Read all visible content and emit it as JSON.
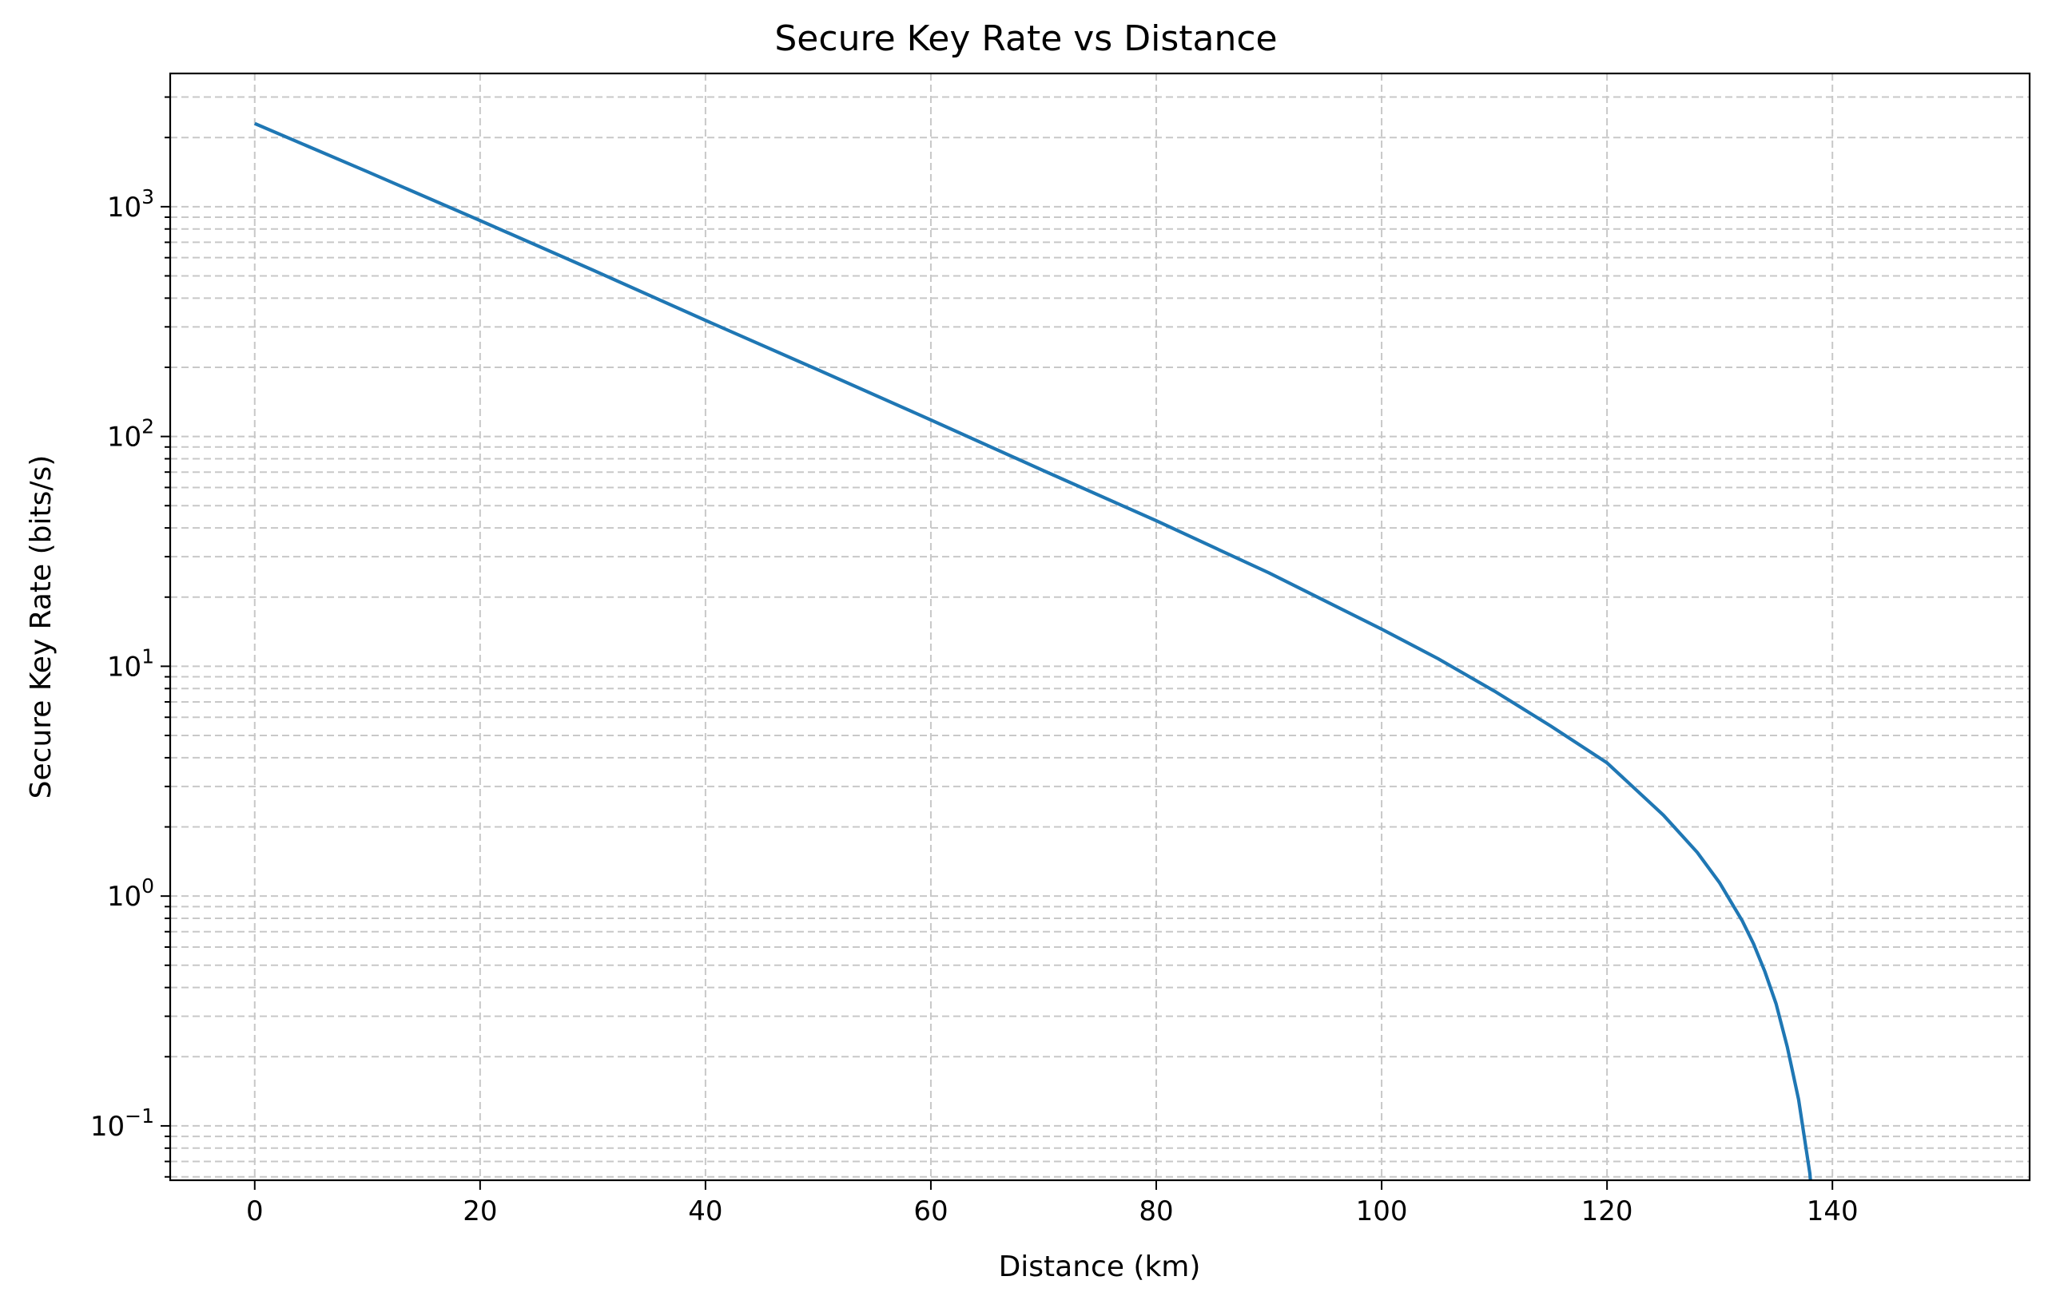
{
  "chart_data": {
    "type": "line",
    "title": "Secure Key Rate vs Distance",
    "xlabel": "Distance (km)",
    "ylabel": "Secure Key Rate (bits/s)",
    "xlim": [
      -7.5,
      157.5
    ],
    "ylim": [
      0.058,
      3800
    ],
    "yscale": "log",
    "grid": true,
    "grid_style": "dashed",
    "legend": "none",
    "x_ticks": [
      0,
      20,
      40,
      60,
      80,
      100,
      120,
      140
    ],
    "x_tick_labels": [
      "0",
      "20",
      "40",
      "60",
      "80",
      "100",
      "120",
      "140"
    ],
    "y_ticks": [
      {
        "value": 0.1,
        "base": "10",
        "exp": "−1"
      },
      {
        "value": 1,
        "base": "10",
        "exp": "0"
      },
      {
        "value": 10,
        "base": "10",
        "exp": "1"
      },
      {
        "value": 100,
        "base": "10",
        "exp": "2"
      },
      {
        "value": 1000,
        "base": "10",
        "exp": "3"
      }
    ],
    "colors": {
      "series": "#1f77b4",
      "grid": "#c8c8c8",
      "frame": "#000000"
    },
    "series": [
      {
        "x": [
          0,
          10,
          20,
          30,
          40,
          50,
          60,
          70,
          80,
          90,
          100,
          105,
          110,
          115,
          120,
          125,
          128,
          130,
          132,
          133,
          134,
          135,
          136,
          137,
          137.5,
          138,
          138.05
        ],
        "y": [
          2300,
          1420,
          870,
          530,
          320,
          195,
          118,
          71,
          43,
          25.5,
          14.5,
          10.8,
          7.8,
          5.5,
          3.8,
          2.25,
          1.55,
          1.14,
          0.78,
          0.62,
          0.47,
          0.34,
          0.22,
          0.13,
          0.09,
          0.062,
          0.058
        ]
      }
    ]
  }
}
